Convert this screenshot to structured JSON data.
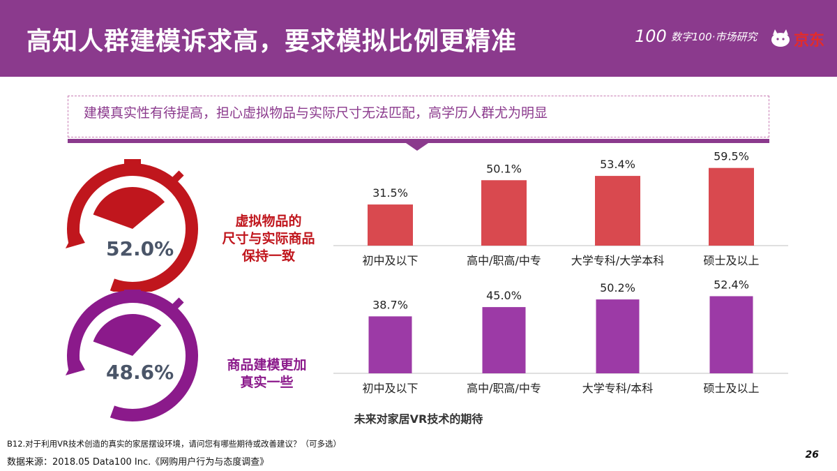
{
  "header": {
    "title": "高知人群建模诉求高，要求模拟比例更精准",
    "brand_logo": "100",
    "brand_sub": "数字100·市场研究",
    "partner": "京东"
  },
  "subtitle": "建模真实性有待提高，担心虚拟物品与实际尺寸无法匹配，高学历人群尤为明显",
  "colors": {
    "header": "#8b3a8d",
    "red": "#c0161d",
    "bar_red": "#d9494f",
    "purple": "#8b1a8b",
    "bar_purple": "#9c3aa6",
    "gray_text": "#4a5568"
  },
  "gauges": [
    {
      "value": "52.0%",
      "fraction": 0.52,
      "label_lines": [
        "虚拟物品的",
        "尺寸与实际商品",
        "保持一致"
      ],
      "color": "#c0161d"
    },
    {
      "value": "48.6%",
      "fraction": 0.486,
      "label_lines": [
        "商品建模更加",
        "真实一些"
      ],
      "color": "#8b1a8b"
    }
  ],
  "chart_data": [
    {
      "type": "bar",
      "categories": [
        "初中及以下",
        "高中/职高/中专",
        "大学专科/大学本科",
        "硕士及以上"
      ],
      "values": [
        31.5,
        50.1,
        53.4,
        59.5
      ],
      "data_labels": [
        "31.5%",
        "50.1%",
        "53.4%",
        "59.5%"
      ],
      "ylim": [
        0,
        62
      ],
      "color": "#d9494f",
      "grid": false
    },
    {
      "type": "bar",
      "categories": [
        "初中及以下",
        "高中/职高/中专",
        "大学专科/本科",
        "硕士及以上"
      ],
      "values": [
        38.7,
        45.0,
        50.2,
        52.4
      ],
      "data_labels": [
        "38.7%",
        "45.0%",
        "50.2%",
        "52.4%"
      ],
      "ylim": [
        0,
        55
      ],
      "color": "#9c3aa6",
      "grid": false
    }
  ],
  "caption": "未来对家居VR技术的期待",
  "footer": {
    "question": "B12.对于利用VR技术创造的真实的家居摆设环境，请问您有哪些期待或改善建议？（可多选）",
    "source": "数据来源：2018.05 Data100 Inc.《网购用户行为与态度调查》",
    "page": "26"
  }
}
